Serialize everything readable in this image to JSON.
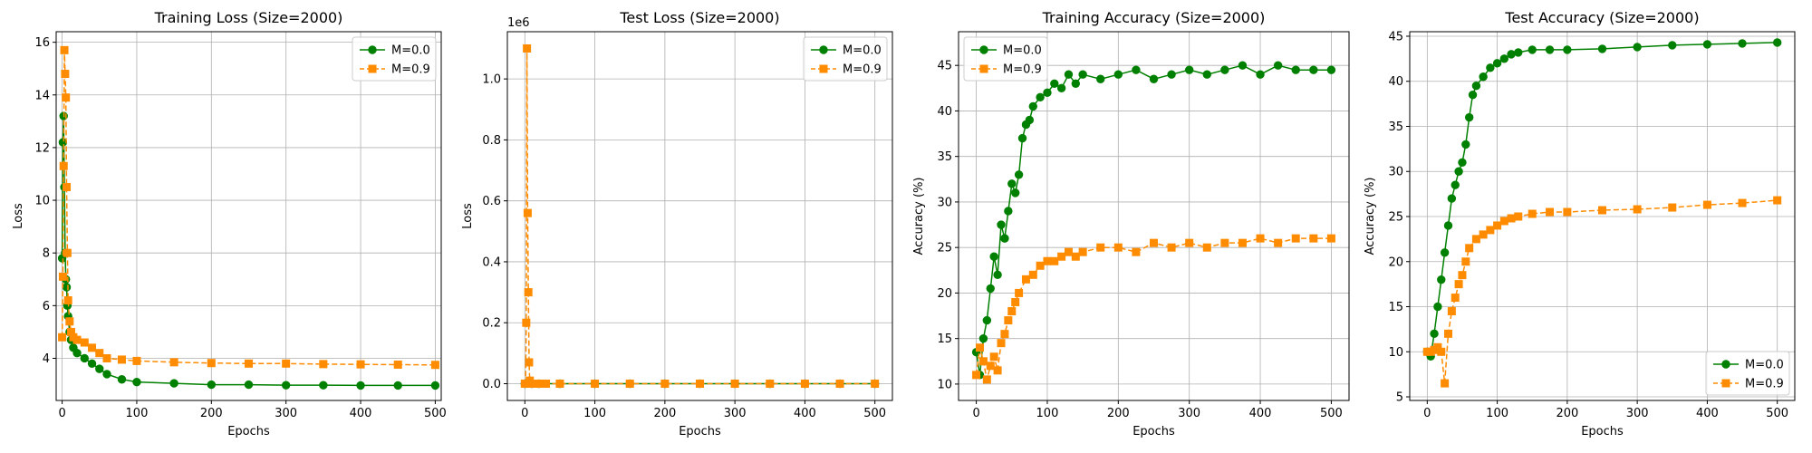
{
  "colors": {
    "m0": "#008000",
    "m9": "#ff8c00"
  },
  "chart_data": [
    {
      "id": "training-loss",
      "type": "line",
      "title": "Training Loss (Size=2000)",
      "xlabel": "Epochs",
      "ylabel": "Loss",
      "xlim": [
        -8,
        508
      ],
      "ylim": [
        2.4,
        16.4
      ],
      "xticks": [
        0,
        100,
        200,
        300,
        400,
        500
      ],
      "xticklabels": [
        "0",
        "100",
        "200",
        "300",
        "400",
        "500"
      ],
      "yticks": [
        4,
        6,
        8,
        10,
        12,
        14,
        16
      ],
      "yticklabels": [
        "4",
        "6",
        "8",
        "10",
        "12",
        "14",
        "16"
      ],
      "offset_text": "",
      "grid": true,
      "legend_loc": "upper-right",
      "series": [
        {
          "name": "M=0.0",
          "color": "#008000",
          "marker": "circle",
          "linestyle": "solid",
          "x": [
            0,
            1,
            2,
            3,
            4,
            5,
            6,
            7,
            8,
            10,
            12,
            15,
            20,
            30,
            40,
            50,
            60,
            80,
            100,
            150,
            200,
            250,
            300,
            350,
            400,
            450,
            500
          ],
          "y": [
            7.8,
            12.2,
            13.2,
            10.5,
            8.0,
            7.0,
            6.7,
            6.0,
            5.6,
            5.0,
            4.7,
            4.4,
            4.2,
            4.0,
            3.8,
            3.6,
            3.4,
            3.2,
            3.1,
            3.05,
            3.0,
            3.0,
            2.98,
            2.98,
            2.97,
            2.97,
            2.97
          ]
        },
        {
          "name": "M=0.9",
          "color": "#ff8c00",
          "marker": "square",
          "linestyle": "dashed",
          "x": [
            0,
            1,
            2,
            3,
            4,
            5,
            6,
            7,
            8,
            10,
            12,
            15,
            20,
            30,
            40,
            50,
            60,
            80,
            100,
            150,
            200,
            250,
            300,
            350,
            400,
            450,
            500
          ],
          "y": [
            4.8,
            7.1,
            11.3,
            15.7,
            14.8,
            13.9,
            10.5,
            8.0,
            6.2,
            5.4,
            5.0,
            4.8,
            4.7,
            4.6,
            4.4,
            4.2,
            4.0,
            3.95,
            3.9,
            3.85,
            3.82,
            3.8,
            3.8,
            3.78,
            3.77,
            3.76,
            3.75
          ]
        }
      ]
    },
    {
      "id": "test-loss",
      "type": "line",
      "title": "Test Loss (Size=2000)",
      "xlabel": "Epochs",
      "ylabel": "Loss",
      "xlim": [
        -25,
        525
      ],
      "ylim": [
        -55000,
        1155000
      ],
      "xticks": [
        0,
        100,
        200,
        300,
        400,
        500
      ],
      "xticklabels": [
        "0",
        "100",
        "200",
        "300",
        "400",
        "500"
      ],
      "yticks": [
        0,
        200000,
        400000,
        600000,
        800000,
        1000000
      ],
      "yticklabels": [
        "0.0",
        "0.2",
        "0.4",
        "0.6",
        "0.8",
        "1.0"
      ],
      "offset_text": "1e6",
      "grid": true,
      "legend_loc": "upper-right",
      "series": [
        {
          "name": "M=0.0",
          "color": "#008000",
          "marker": "circle",
          "linestyle": "solid",
          "x": [
            0,
            10,
            20,
            50,
            100,
            150,
            200,
            250,
            300,
            350,
            400,
            450,
            500
          ],
          "y": [
            0,
            0,
            0,
            0,
            0,
            0,
            0,
            0,
            0,
            0,
            0,
            0,
            0
          ]
        },
        {
          "name": "M=0.9",
          "color": "#ff8c00",
          "marker": "square",
          "linestyle": "dashed",
          "x": [
            0,
            1,
            2,
            3,
            4,
            5,
            6,
            7,
            8,
            9,
            10,
            15,
            20,
            30,
            50,
            100,
            150,
            200,
            250,
            300,
            350,
            400,
            450,
            500
          ],
          "y": [
            0,
            0,
            200000,
            1100000,
            560000,
            300000,
            70000,
            10000,
            0,
            0,
            0,
            0,
            0,
            0,
            0,
            0,
            0,
            0,
            0,
            0,
            0,
            0,
            0,
            0
          ]
        }
      ]
    },
    {
      "id": "training-accuracy",
      "type": "line",
      "title": "Training Accuracy (Size=2000)",
      "xlabel": "Epochs",
      "ylabel": "Accuracy (%)",
      "xlim": [
        -25,
        525
      ],
      "ylim": [
        8.2,
        48.7
      ],
      "xticks": [
        0,
        100,
        200,
        300,
        400,
        500
      ],
      "xticklabels": [
        "0",
        "100",
        "200",
        "300",
        "400",
        "500"
      ],
      "yticks": [
        10,
        15,
        20,
        25,
        30,
        35,
        40,
        45
      ],
      "yticklabels": [
        "10",
        "15",
        "20",
        "25",
        "30",
        "35",
        "40",
        "45"
      ],
      "offset_text": "",
      "grid": true,
      "legend_loc": "upper-left",
      "series": [
        {
          "name": "M=0.0",
          "color": "#008000",
          "marker": "circle",
          "linestyle": "solid",
          "x": [
            0,
            5,
            10,
            15,
            20,
            25,
            30,
            35,
            40,
            45,
            50,
            55,
            60,
            65,
            70,
            75,
            80,
            90,
            100,
            110,
            120,
            130,
            140,
            150,
            175,
            200,
            225,
            250,
            275,
            300,
            325,
            350,
            375,
            400,
            425,
            450,
            475,
            500
          ],
          "y": [
            13.5,
            11.0,
            15.0,
            17.0,
            20.5,
            24.0,
            22.0,
            27.5,
            26.0,
            29.0,
            32.0,
            31.0,
            33.0,
            37.0,
            38.5,
            39.0,
            40.5,
            41.5,
            42.0,
            43.0,
            42.5,
            44.0,
            43.0,
            44.0,
            43.5,
            44.0,
            44.5,
            43.5,
            44.0,
            44.5,
            44.0,
            44.5,
            45.0,
            44.0,
            45.0,
            44.5,
            44.5,
            44.5
          ]
        },
        {
          "name": "M=0.9",
          "color": "#ff8c00",
          "marker": "square",
          "linestyle": "dashed",
          "x": [
            0,
            5,
            10,
            15,
            20,
            25,
            30,
            35,
            40,
            45,
            50,
            55,
            60,
            70,
            80,
            90,
            100,
            110,
            120,
            130,
            140,
            150,
            175,
            200,
            225,
            250,
            275,
            300,
            325,
            350,
            375,
            400,
            425,
            450,
            475,
            500
          ],
          "y": [
            11.0,
            14.0,
            12.5,
            10.5,
            12.0,
            13.0,
            11.5,
            14.5,
            15.5,
            17.0,
            18.0,
            19.0,
            20.0,
            21.5,
            22.0,
            23.0,
            23.5,
            23.5,
            24.0,
            24.5,
            24.0,
            24.5,
            25.0,
            25.0,
            24.5,
            25.5,
            25.0,
            25.5,
            25.0,
            25.5,
            25.5,
            26.0,
            25.5,
            26.0,
            26.0,
            26.0
          ]
        }
      ]
    },
    {
      "id": "test-accuracy",
      "type": "line",
      "title": "Test Accuracy (Size=2000)",
      "xlabel": "Epochs",
      "ylabel": "Accuracy (%)",
      "xlim": [
        -25,
        525
      ],
      "ylim": [
        4.6,
        45.5
      ],
      "xticks": [
        0,
        100,
        200,
        300,
        400,
        500
      ],
      "xticklabels": [
        "0",
        "100",
        "200",
        "300",
        "400",
        "500"
      ],
      "yticks": [
        5,
        10,
        15,
        20,
        25,
        30,
        35,
        40,
        45
      ],
      "yticklabels": [
        "5",
        "10",
        "15",
        "20",
        "25",
        "30",
        "35",
        "40",
        "45"
      ],
      "offset_text": "",
      "grid": true,
      "legend_loc": "lower-right",
      "series": [
        {
          "name": "M=0.0",
          "color": "#008000",
          "marker": "circle",
          "linestyle": "solid",
          "x": [
            0,
            5,
            10,
            15,
            20,
            25,
            30,
            35,
            40,
            45,
            50,
            55,
            60,
            65,
            70,
            80,
            90,
            100,
            110,
            120,
            130,
            150,
            175,
            200,
            250,
            300,
            350,
            400,
            450,
            500
          ],
          "y": [
            10.0,
            9.5,
            12.0,
            15.0,
            18.0,
            21.0,
            24.0,
            27.0,
            28.5,
            30.0,
            31.0,
            33.0,
            36.0,
            38.5,
            39.5,
            40.5,
            41.5,
            42.0,
            42.5,
            43.0,
            43.2,
            43.5,
            43.5,
            43.5,
            43.6,
            43.8,
            44.0,
            44.1,
            44.2,
            44.3
          ]
        },
        {
          "name": "M=0.9",
          "color": "#ff8c00",
          "marker": "square",
          "linestyle": "dashed",
          "x": [
            0,
            5,
            10,
            15,
            20,
            25,
            30,
            35,
            40,
            45,
            50,
            55,
            60,
            70,
            80,
            90,
            100,
            110,
            120,
            130,
            150,
            175,
            200,
            250,
            300,
            350,
            400,
            450,
            500
          ],
          "y": [
            10.0,
            10.0,
            10.2,
            10.5,
            10.0,
            6.5,
            12.0,
            14.5,
            16.0,
            17.5,
            18.5,
            20.0,
            21.5,
            22.5,
            23.0,
            23.5,
            24.0,
            24.5,
            24.8,
            25.0,
            25.3,
            25.5,
            25.5,
            25.7,
            25.8,
            26.0,
            26.3,
            26.5,
            26.8
          ]
        }
      ]
    }
  ]
}
